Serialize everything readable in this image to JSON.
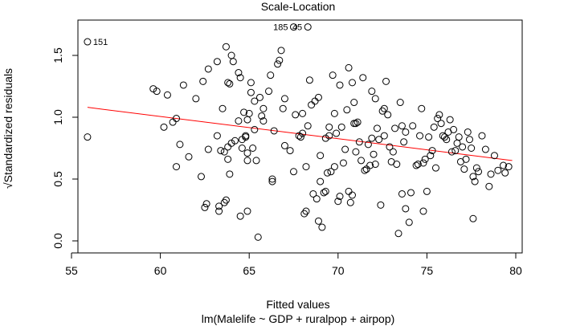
{
  "chart_data": {
    "type": "scatter",
    "title": "Scale-Location",
    "xlabel": "Fitted values",
    "subtitle": "lm(Malelife ~ GDP + ruralpop + airpop)",
    "ylabel": "√Standardized residuals",
    "xlim": [
      55,
      80
    ],
    "ylim": [
      0,
      1.75
    ],
    "x_ticks": [
      55,
      60,
      65,
      70,
      75,
      80
    ],
    "y_ticks": [
      0.0,
      0.5,
      1.0,
      1.5
    ],
    "x_tick_labels": [
      "55",
      "60",
      "65",
      "70",
      "75",
      "80"
    ],
    "y_tick_labels": [
      "0.0",
      "0.5",
      "1.0",
      "1.5"
    ],
    "point_color": "#000000",
    "smooth_color": "#ff0000",
    "smooth_line": {
      "x": [
        55.9,
        79.8
      ],
      "y": [
        1.08,
        0.65
      ]
    },
    "annotations": [
      {
        "label": "151",
        "x": 55.9,
        "y": 1.61,
        "side": "right"
      },
      {
        "label": "185",
        "x": 67.5,
        "y": 1.73,
        "side": "left"
      },
      {
        "label": "45",
        "x": 68.3,
        "y": 1.73,
        "side": "left"
      }
    ],
    "points": [
      [
        55.9,
        1.61
      ],
      [
        55.9,
        0.84
      ],
      [
        67.5,
        1.73
      ],
      [
        68.3,
        1.73
      ],
      [
        59.6,
        1.23
      ],
      [
        59.8,
        1.21
      ],
      [
        60.4,
        1.18
      ],
      [
        60.2,
        0.92
      ],
      [
        60.7,
        0.96
      ],
      [
        60.9,
        0.99
      ],
      [
        60.9,
        0.6
      ],
      [
        61.1,
        0.78
      ],
      [
        61.3,
        1.26
      ],
      [
        61.6,
        0.68
      ],
      [
        62.0,
        1.15
      ],
      [
        62.3,
        0.52
      ],
      [
        62.4,
        1.29
      ],
      [
        62.7,
        1.39
      ],
      [
        62.7,
        0.74
      ],
      [
        62.6,
        0.3
      ],
      [
        62.5,
        0.27
      ],
      [
        63.2,
        1.45
      ],
      [
        63.2,
        0.85
      ],
      [
        63.3,
        0.28
      ],
      [
        63.3,
        0.24
      ],
      [
        63.4,
        0.73
      ],
      [
        63.6,
        0.72
      ],
      [
        63.5,
        1.07
      ],
      [
        63.7,
        1.57
      ],
      [
        63.8,
        1.28
      ],
      [
        63.8,
        0.76
      ],
      [
        63.7,
        0.33
      ],
      [
        63.6,
        0.31
      ],
      [
        63.9,
        0.54
      ],
      [
        63.8,
        0.66
      ],
      [
        64.0,
        1.5
      ],
      [
        64.0,
        0.79
      ],
      [
        64.1,
        1.45
      ],
      [
        64.2,
        0.81
      ],
      [
        64.4,
        1.36
      ],
      [
        64.4,
        0.97
      ],
      [
        64.5,
        1.32
      ],
      [
        64.6,
        0.82
      ],
      [
        64.6,
        0.75
      ],
      [
        64.7,
        1.04
      ],
      [
        64.8,
        0.84
      ],
      [
        64.9,
        0.98
      ],
      [
        64.9,
        0.71
      ],
      [
        64.9,
        0.24
      ],
      [
        64.5,
        0.2
      ],
      [
        64.8,
        0.85
      ],
      [
        64.9,
        0.65
      ],
      [
        65.0,
        1.03
      ],
      [
        65.1,
        1.2
      ],
      [
        65.1,
        1.28
      ],
      [
        65.3,
        1.13
      ],
      [
        65.3,
        0.9
      ],
      [
        65.2,
        0.75
      ],
      [
        65.5,
        0.03
      ],
      [
        65.4,
        0.65
      ],
      [
        65.6,
        1.16
      ],
      [
        65.7,
        1.01
      ],
      [
        65.8,
        1.07
      ],
      [
        65.8,
        0.97
      ],
      [
        66.1,
        1.21
      ],
      [
        66.2,
        1.34
      ],
      [
        66.3,
        0.5
      ],
      [
        66.3,
        0.48
      ],
      [
        66.4,
        0.89
      ],
      [
        66.7,
        1.46
      ],
      [
        66.8,
        1.54
      ],
      [
        66.9,
        1.07
      ],
      [
        67.0,
        1.15
      ],
      [
        67.3,
        0.73
      ],
      [
        67.5,
        0.56
      ],
      [
        67.6,
        1.02
      ],
      [
        67.8,
        0.85
      ],
      [
        67.9,
        0.84
      ],
      [
        68.0,
        1.03
      ],
      [
        68.1,
        0.22
      ],
      [
        68.2,
        0.24
      ],
      [
        68.2,
        0.6
      ],
      [
        68.3,
        0.93
      ],
      [
        68.4,
        1.3
      ],
      [
        68.6,
        0.38
      ],
      [
        68.7,
        1.13
      ],
      [
        68.8,
        0.34
      ],
      [
        68.9,
        0.16
      ],
      [
        68.9,
        1.16
      ],
      [
        69.0,
        0.69
      ],
      [
        69.0,
        0.48
      ],
      [
        69.1,
        0.11
      ],
      [
        69.2,
        0.39
      ],
      [
        69.3,
        0.4
      ],
      [
        69.4,
        0.55
      ],
      [
        69.5,
        0.92
      ],
      [
        69.5,
        0.85
      ],
      [
        69.6,
        0.56
      ],
      [
        69.7,
        1.34
      ],
      [
        69.8,
        0.6
      ],
      [
        69.9,
        0.87
      ],
      [
        70.0,
        0.32
      ],
      [
        70.1,
        0.36
      ],
      [
        70.1,
        1.26
      ],
      [
        70.2,
        0.92
      ],
      [
        70.3,
        0.63
      ],
      [
        70.4,
        0.74
      ],
      [
        70.5,
        1.06
      ],
      [
        70.6,
        0.4
      ],
      [
        70.7,
        0.31
      ],
      [
        70.8,
        1.28
      ],
      [
        70.8,
        0.37
      ],
      [
        70.9,
        0.95
      ],
      [
        71.0,
        0.72
      ],
      [
        71.0,
        0.95
      ],
      [
        71.1,
        0.96
      ],
      [
        71.2,
        0.8
      ],
      [
        71.3,
        0.65
      ],
      [
        71.4,
        1.32
      ],
      [
        71.5,
        0.57
      ],
      [
        71.6,
        0.58
      ],
      [
        71.7,
        0.78
      ],
      [
        71.8,
        0.61
      ],
      [
        71.9,
        0.83
      ],
      [
        72.0,
        0.7
      ],
      [
        72.1,
        1.15
      ],
      [
        72.1,
        0.62
      ],
      [
        72.2,
        0.91
      ],
      [
        72.3,
        0.82
      ],
      [
        72.4,
        0.29
      ],
      [
        72.5,
        1.05
      ],
      [
        72.6,
        0.85
      ],
      [
        72.7,
        1.29
      ],
      [
        72.8,
        1.02
      ],
      [
        72.9,
        0.76
      ],
      [
        73.0,
        0.64
      ],
      [
        73.1,
        0.72
      ],
      [
        73.2,
        0.91
      ],
      [
        73.3,
        0.62
      ],
      [
        73.4,
        0.06
      ],
      [
        73.5,
        1.12
      ],
      [
        73.6,
        0.93
      ],
      [
        73.6,
        0.38
      ],
      [
        73.8,
        0.26
      ],
      [
        73.8,
        0.88
      ],
      [
        74.0,
        0.15
      ],
      [
        74.1,
        0.39
      ],
      [
        74.2,
        0.93
      ],
      [
        74.4,
        0.61
      ],
      [
        74.6,
        0.85
      ],
      [
        74.7,
        1.07
      ],
      [
        74.8,
        0.24
      ],
      [
        74.8,
        0.63
      ],
      [
        74.9,
        0.66
      ],
      [
        75.0,
        0.4
      ],
      [
        75.2,
        0.69
      ],
      [
        75.3,
        0.73
      ],
      [
        75.4,
        0.92
      ],
      [
        75.5,
        0.59
      ],
      [
        75.6,
        0.99
      ],
      [
        75.7,
        1.02
      ],
      [
        75.8,
        0.95
      ],
      [
        75.9,
        0.85
      ],
      [
        76.0,
        0.84
      ],
      [
        76.1,
        0.82
      ],
      [
        76.2,
        0.88
      ],
      [
        76.3,
        0.98
      ],
      [
        76.4,
        0.72
      ],
      [
        76.5,
        0.9
      ],
      [
        76.6,
        0.73
      ],
      [
        76.7,
        0.79
      ],
      [
        76.8,
        0.84
      ],
      [
        76.9,
        0.64
      ],
      [
        77.0,
        0.76
      ],
      [
        77.1,
        0.58
      ],
      [
        77.2,
        0.66
      ],
      [
        77.3,
        0.88
      ],
      [
        77.4,
        0.82
      ],
      [
        77.5,
        0.75
      ],
      [
        77.6,
        0.52
      ],
      [
        77.6,
        0.18
      ],
      [
        77.7,
        0.48
      ],
      [
        77.8,
        0.59
      ],
      [
        77.9,
        0.56
      ],
      [
        78.1,
        0.85
      ],
      [
        78.3,
        0.74
      ],
      [
        78.5,
        0.44
      ],
      [
        78.6,
        0.54
      ],
      [
        78.8,
        0.69
      ],
      [
        79.0,
        0.57
      ],
      [
        79.3,
        0.61
      ],
      [
        79.4,
        0.55
      ],
      [
        79.6,
        0.6
      ],
      [
        63.9,
        1.27
      ],
      [
        66.6,
        1.43
      ],
      [
        68.5,
        1.1
      ],
      [
        69.3,
        0.83
      ],
      [
        70.6,
        1.4
      ],
      [
        71.9,
        1.21
      ],
      [
        72.6,
        1.07
      ],
      [
        73.7,
        0.8
      ],
      [
        74.5,
        0.62
      ],
      [
        75.1,
        0.84
      ],
      [
        67.0,
        0.77
      ],
      [
        68.0,
        0.87
      ],
      [
        69.8,
        1.03
      ],
      [
        70.9,
        1.12
      ]
    ]
  }
}
